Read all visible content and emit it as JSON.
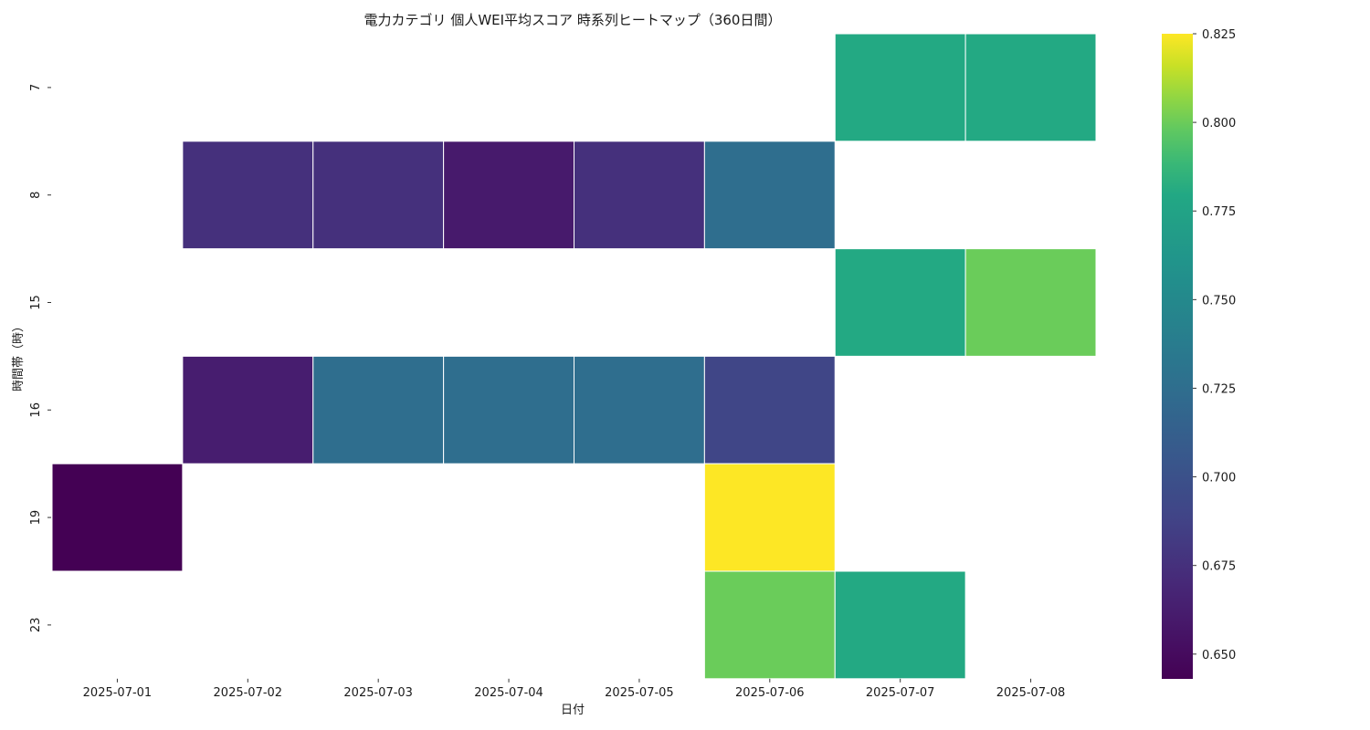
{
  "chart_data": {
    "type": "heatmap",
    "title": "電力カテゴリ 個人WEI平均スコア 時系列ヒートマップ（360日間）",
    "xlabel": "日付",
    "ylabel": "時間帯（時）",
    "x": [
      "2025-07-01",
      "2025-07-02",
      "2025-07-03",
      "2025-07-04",
      "2025-07-05",
      "2025-07-06",
      "2025-07-07",
      "2025-07-08"
    ],
    "y": [
      "7",
      "8",
      "15",
      "16",
      "19",
      "23"
    ],
    "values": [
      [
        null,
        null,
        null,
        null,
        null,
        null,
        0.78,
        0.78
      ],
      [
        null,
        0.675,
        0.675,
        0.66,
        0.675,
        0.725,
        null,
        null
      ],
      [
        null,
        null,
        null,
        null,
        null,
        null,
        0.78,
        0.8
      ],
      [
        null,
        0.662,
        0.725,
        0.725,
        0.725,
        0.69,
        null,
        null
      ],
      [
        0.643,
        null,
        null,
        null,
        null,
        0.825,
        null,
        null
      ],
      [
        null,
        null,
        null,
        null,
        null,
        0.8,
        0.78,
        null
      ]
    ],
    "colormap": "viridis",
    "vmin": 0.643,
    "vmax": 0.825,
    "colorbar_ticks": [
      "0.650",
      "0.675",
      "0.700",
      "0.725",
      "0.750",
      "0.775",
      "0.800",
      "0.825"
    ],
    "grid": false
  }
}
